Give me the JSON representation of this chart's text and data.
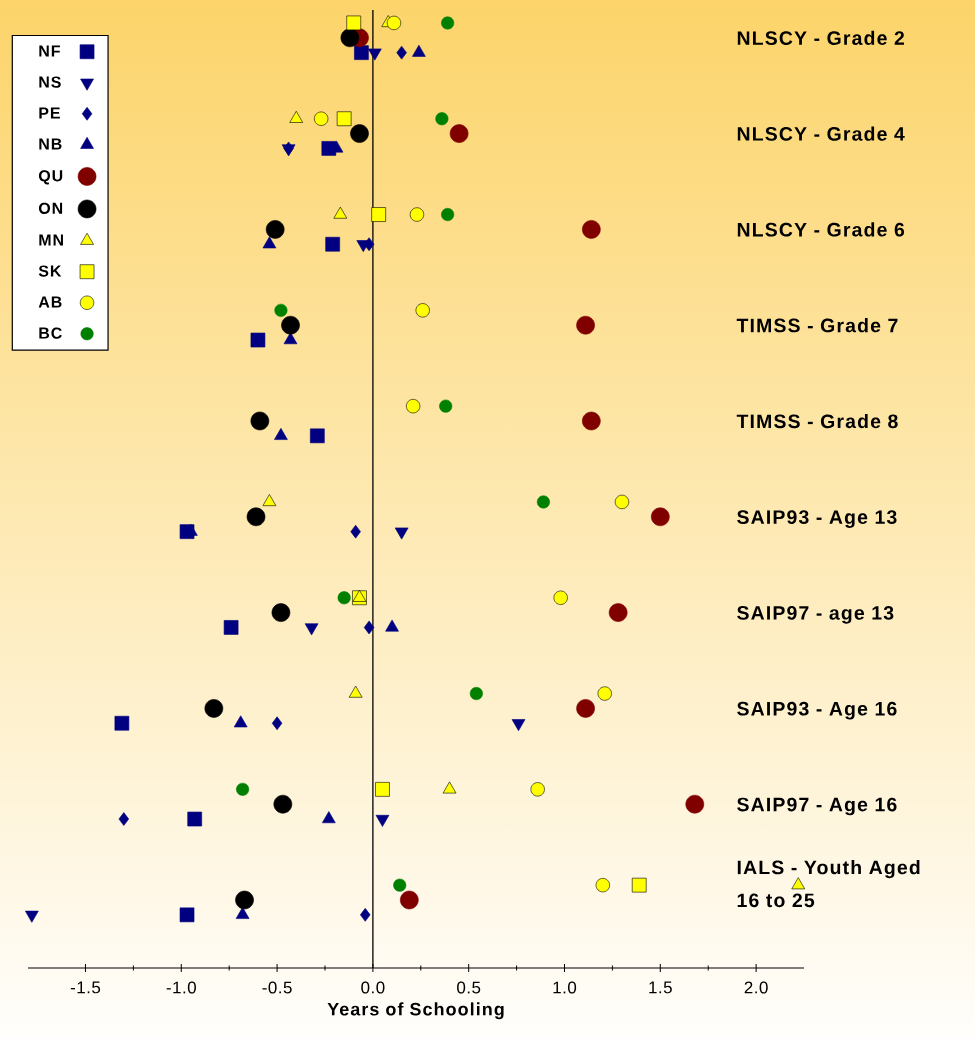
{
  "chart_data": {
    "type": "scatter",
    "orientation": "horizontal",
    "xlabel": "Years of Schooling",
    "categories": [
      "NLSCY - Grade 2",
      "NLSCY - Grade 4",
      "NLSCY - Grade 6",
      "TIMSS - Grade 7",
      "TIMSS - Grade 8",
      "SAIP93 - Age 13",
      "SAIP97 - age 13",
      "SAIP93 - Age 16",
      "SAIP97 - Age 16",
      "IALS - Youth Aged 16 to 25"
    ],
    "xlim": [
      -1.8,
      2.25
    ],
    "xticks": [
      -1.5,
      {
        "value": -1.0,
        "label": "-1.0"
      },
      -0.5,
      {
        "value": 0,
        "label": "0.0"
      },
      0.5,
      {
        "value": 1.0,
        "label": "1.0"
      },
      1.5,
      {
        "value": 2.0,
        "label": "2.0"
      }
    ],
    "legend": "top left",
    "ref_lines": [
      {
        "axis": "x",
        "value": 0,
        "color": "#000000"
      }
    ],
    "series": [
      {
        "name": "NF",
        "color": "#000080",
        "marker": "square",
        "values": [
          -0.06,
          -0.23,
          -0.21,
          -0.6,
          -0.29,
          -0.97,
          -0.74,
          -1.31,
          -0.93,
          -0.97
        ]
      },
      {
        "name": "NS",
        "color": "#000080",
        "marker": "triangle-down",
        "values": [
          0.01,
          -0.44,
          -0.05,
          null,
          null,
          0.15,
          -0.32,
          0.76,
          0.05,
          -1.78
        ]
      },
      {
        "name": "PE",
        "color": "#000080",
        "marker": "diamond",
        "values": [
          0.15,
          -0.44,
          -0.02,
          null,
          null,
          -0.09,
          -0.02,
          -0.5,
          -1.3,
          -0.04
        ]
      },
      {
        "name": "NB",
        "color": "#000080",
        "marker": "triangle",
        "values": [
          0.24,
          -0.19,
          -0.54,
          -0.43,
          -0.48,
          -0.95,
          0.1,
          -0.69,
          -0.23,
          -0.68
        ]
      },
      {
        "name": "QU",
        "color": "#800000",
        "marker": "circle",
        "values": [
          -0.07,
          0.45,
          1.14,
          1.11,
          1.14,
          1.5,
          1.28,
          1.11,
          1.68,
          0.19
        ]
      },
      {
        "name": "ON",
        "color": "#000000",
        "marker": "circle",
        "values": [
          -0.12,
          -0.07,
          -0.51,
          -0.43,
          -0.59,
          -0.61,
          -0.48,
          -0.83,
          -0.47,
          -0.67
        ]
      },
      {
        "name": "MN",
        "color": "#ffff00",
        "marker": "triangle",
        "values": [
          0.08,
          -0.4,
          -0.17,
          null,
          null,
          -0.54,
          -0.07,
          -0.09,
          0.4,
          2.22
        ]
      },
      {
        "name": "SK",
        "color": "#ffff00",
        "marker": "square",
        "values": [
          -0.1,
          -0.15,
          0.03,
          null,
          null,
          null,
          -0.07,
          null,
          0.05,
          1.39
        ]
      },
      {
        "name": "AB",
        "color": "#ffff00",
        "marker": "circle",
        "values": [
          0.11,
          -0.27,
          0.23,
          0.26,
          0.21,
          1.3,
          0.98,
          1.21,
          0.86,
          1.2
        ]
      },
      {
        "name": "BC",
        "color": "#008000",
        "marker": "circle",
        "values": [
          0.39,
          0.36,
          0.39,
          -0.48,
          0.38,
          0.89,
          -0.15,
          0.54,
          -0.68,
          0.14
        ]
      }
    ]
  }
}
